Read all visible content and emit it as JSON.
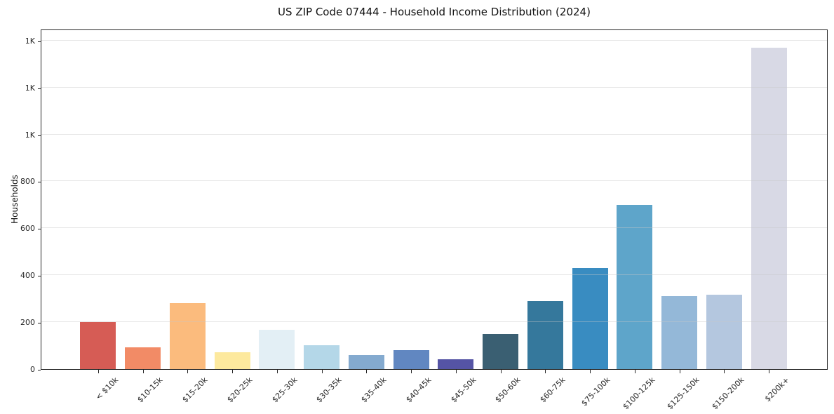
{
  "chart_data": {
    "type": "bar",
    "title": "US ZIP Code 07444 - Household Income Distribution (2024)",
    "xlabel": "",
    "ylabel": "Households",
    "categories": [
      "< $10k",
      "$10-15k",
      "$15-20k",
      "$20-25k",
      "$25-30k",
      "$30-35k",
      "$35-40k",
      "$40-45k",
      "$45-50k",
      "$50-60k",
      "$60-75k",
      "$75-100k",
      "$100-125k",
      "$125-150k",
      "$150-200k",
      "$200k+"
    ],
    "values": [
      202,
      94,
      281,
      71,
      167,
      101,
      59,
      81,
      41,
      150,
      290,
      431,
      704,
      311,
      318,
      1375
    ],
    "bar_colors": [
      "#d65c55",
      "#f28b66",
      "#fbbb7d",
      "#fde99e",
      "#e3eff5",
      "#b4d7e8",
      "#84aacf",
      "#6187c1",
      "#5554a5",
      "#3a5f72",
      "#35789c",
      "#398cc1",
      "#5ea5ca",
      "#94b8d8",
      "#b4c7df",
      "#d8d9e5"
    ],
    "y_ticks": {
      "values": [
        0,
        200,
        400,
        600,
        800,
        1000,
        1200,
        1400
      ],
      "labels": [
        "0",
        "200",
        "400",
        "600",
        "800",
        "1K",
        "1K",
        "1K"
      ]
    },
    "ylim": [
      0,
      1450
    ],
    "grid": "horizontal",
    "legend": "none"
  },
  "style_colors": {
    "background": "#ffffff",
    "spine": "#262626",
    "grid": "#e8e8e8",
    "text": "#1a1a1a"
  }
}
